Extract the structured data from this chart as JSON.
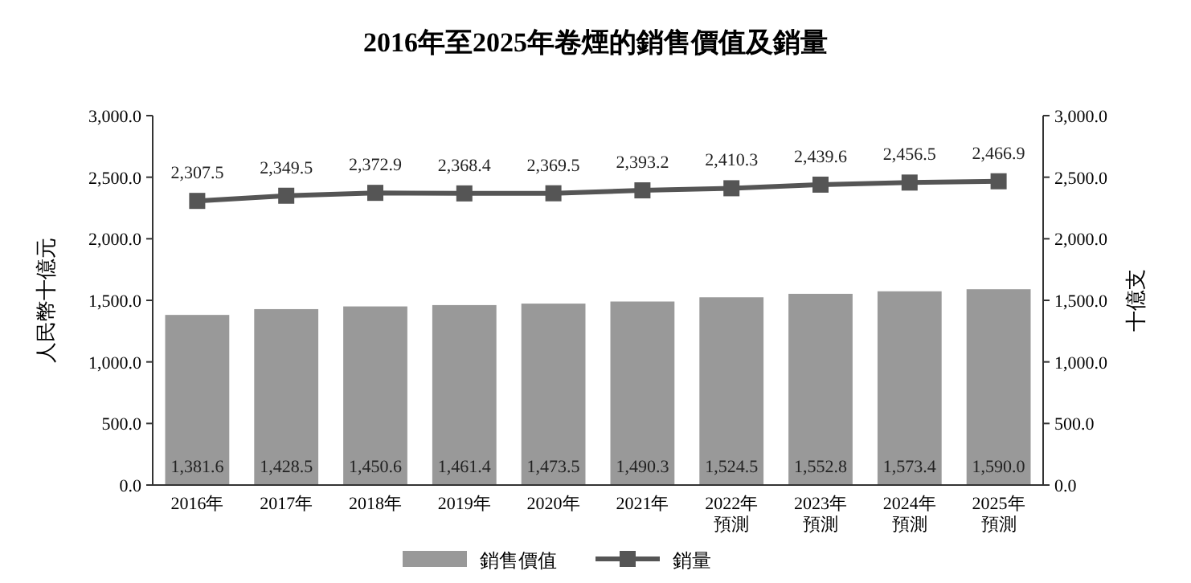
{
  "chart_data": {
    "type": "bar",
    "title": "2016年至2025年卷煙的銷售價值及銷量",
    "ylabel": "人民幣十億元",
    "y2label": "十億支",
    "categories": [
      "2016年",
      "2017年",
      "2018年",
      "2019年",
      "2020年",
      "2021年",
      "2022年預測",
      "2023年預測",
      "2024年預測",
      "2025年預測"
    ],
    "series": [
      {
        "name": "銷售價值",
        "color": "#999999",
        "values": [
          1381.6,
          1428.5,
          1450.6,
          1461.4,
          1473.5,
          1490.3,
          1524.5,
          1552.8,
          1573.4,
          1590.0
        ],
        "value_labels": [
          "1,381.6",
          "1,428.5",
          "1,450.6",
          "1,461.4",
          "1,473.5",
          "1,490.3",
          "1,524.5",
          "1,552.8",
          "1,573.4",
          "1,590.0"
        ]
      },
      {
        "name": "銷量",
        "type": "line",
        "axis": "y2",
        "color": "#555555",
        "marker": "square",
        "values": [
          2307.5,
          2349.5,
          2372.9,
          2368.4,
          2369.5,
          2393.2,
          2410.3,
          2439.6,
          2456.5,
          2466.9
        ],
        "value_labels": [
          "2,307.5",
          "2,349.5",
          "2,372.9",
          "2,368.4",
          "2,369.5",
          "2,393.2",
          "2,410.3",
          "2,439.6",
          "2,456.5",
          "2,466.9"
        ]
      }
    ],
    "ylim": [
      0,
      3000
    ],
    "yticks": [
      {
        "value": 0,
        "label": "0.0"
      },
      {
        "value": 500,
        "label": "500.0"
      },
      {
        "value": 1000,
        "label": "1,000.0"
      },
      {
        "value": 1500,
        "label": "1,500.0"
      },
      {
        "value": 2000,
        "label": "2,000.0"
      },
      {
        "value": 2500,
        "label": "2,500.0"
      },
      {
        "value": 3000,
        "label": "3,000.0"
      }
    ],
    "y2lim": [
      0,
      3000
    ],
    "y2ticks": [
      {
        "value": 0,
        "label": "0.0"
      },
      {
        "value": 500,
        "label": "500.0"
      },
      {
        "value": 1000,
        "label": "1,000.0"
      },
      {
        "value": 1500,
        "label": "1,500.0"
      },
      {
        "value": 2000,
        "label": "2,000.0"
      },
      {
        "value": 2500,
        "label": "2,500.0"
      },
      {
        "value": 3000,
        "label": "3,000.0"
      }
    ],
    "grid": false,
    "legend": "bottom"
  }
}
